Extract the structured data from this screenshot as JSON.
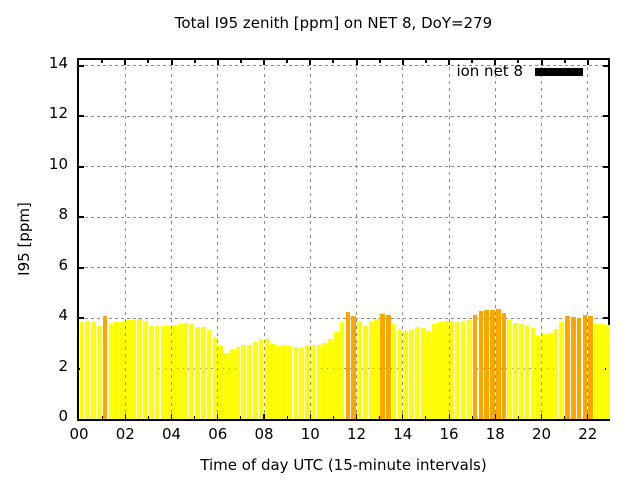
{
  "figure": {
    "title": "Total I95 zenith [ppm] on NET 8, DoY=279",
    "background": "#ffffff"
  },
  "legend": {
    "label": "ion net 8",
    "swatch_color": "#000000",
    "position": "top-right-inside"
  },
  "axes": {
    "xlabel": "Time of day UTC (15-minute intervals)",
    "ylabel": "I95 [ppm]",
    "ylim": [
      0,
      14
    ],
    "xlim_hours": [
      0,
      23
    ],
    "xtick_hours": [
      0,
      2,
      4,
      6,
      8,
      10,
      12,
      14,
      16,
      18,
      20,
      22
    ],
    "xtick_labels": [
      "00",
      "02",
      "04",
      "06",
      "08",
      "10",
      "12",
      "14",
      "16",
      "18",
      "20",
      "22"
    ],
    "ytick_values": [
      0,
      2,
      4,
      6,
      8,
      10,
      12,
      14
    ],
    "ytick_labels": [
      "0",
      "2",
      "4",
      "6",
      "8",
      "10",
      "12",
      "14"
    ],
    "grid": true
  },
  "colors": {
    "bar_normal": "#ffff00",
    "bar_highlight": "#ffa500",
    "grid": "#8c8c8c",
    "axis": "#000000",
    "text": "#000000"
  },
  "chart_data": {
    "type": "bar",
    "series_name": "ion net 8",
    "start_time_utc": "00:00",
    "interval_minutes": 15,
    "values_ppm": [
      3.85,
      3.9,
      3.86,
      3.7,
      4.1,
      3.75,
      3.83,
      3.86,
      3.91,
      3.93,
      3.95,
      3.87,
      3.7,
      3.7,
      3.68,
      3.68,
      3.72,
      3.77,
      3.8,
      3.75,
      3.66,
      3.65,
      3.52,
      3.25,
      2.9,
      2.62,
      2.78,
      2.84,
      2.92,
      2.92,
      3.05,
      3.15,
      3.15,
      2.96,
      2.89,
      2.92,
      2.9,
      2.85,
      2.8,
      2.95,
      2.95,
      2.92,
      3.0,
      3.15,
      3.45,
      3.83,
      4.25,
      4.09,
      3.83,
      3.7,
      3.87,
      3.96,
      4.16,
      4.12,
      3.77,
      3.57,
      3.48,
      3.53,
      3.63,
      3.6,
      3.5,
      3.77,
      3.83,
      3.87,
      3.9,
      3.86,
      3.9,
      3.93,
      4.13,
      4.26,
      4.3,
      4.3,
      4.36,
      4.18,
      3.91,
      3.8,
      3.77,
      3.71,
      3.61,
      3.3,
      3.35,
      3.4,
      3.55,
      3.85,
      4.1,
      4.05,
      4.02,
      4.13,
      4.08,
      3.78,
      3.78,
      3.74
    ],
    "highlight_indices_orange": [
      4,
      46,
      47,
      52,
      53,
      68,
      69,
      70,
      71,
      72,
      73,
      84,
      85,
      86,
      87,
      88
    ],
    "ylabel": "I95 [ppm]",
    "xlabel": "Time of day UTC (15-minute intervals)",
    "legend_position": "top-right-inside"
  }
}
